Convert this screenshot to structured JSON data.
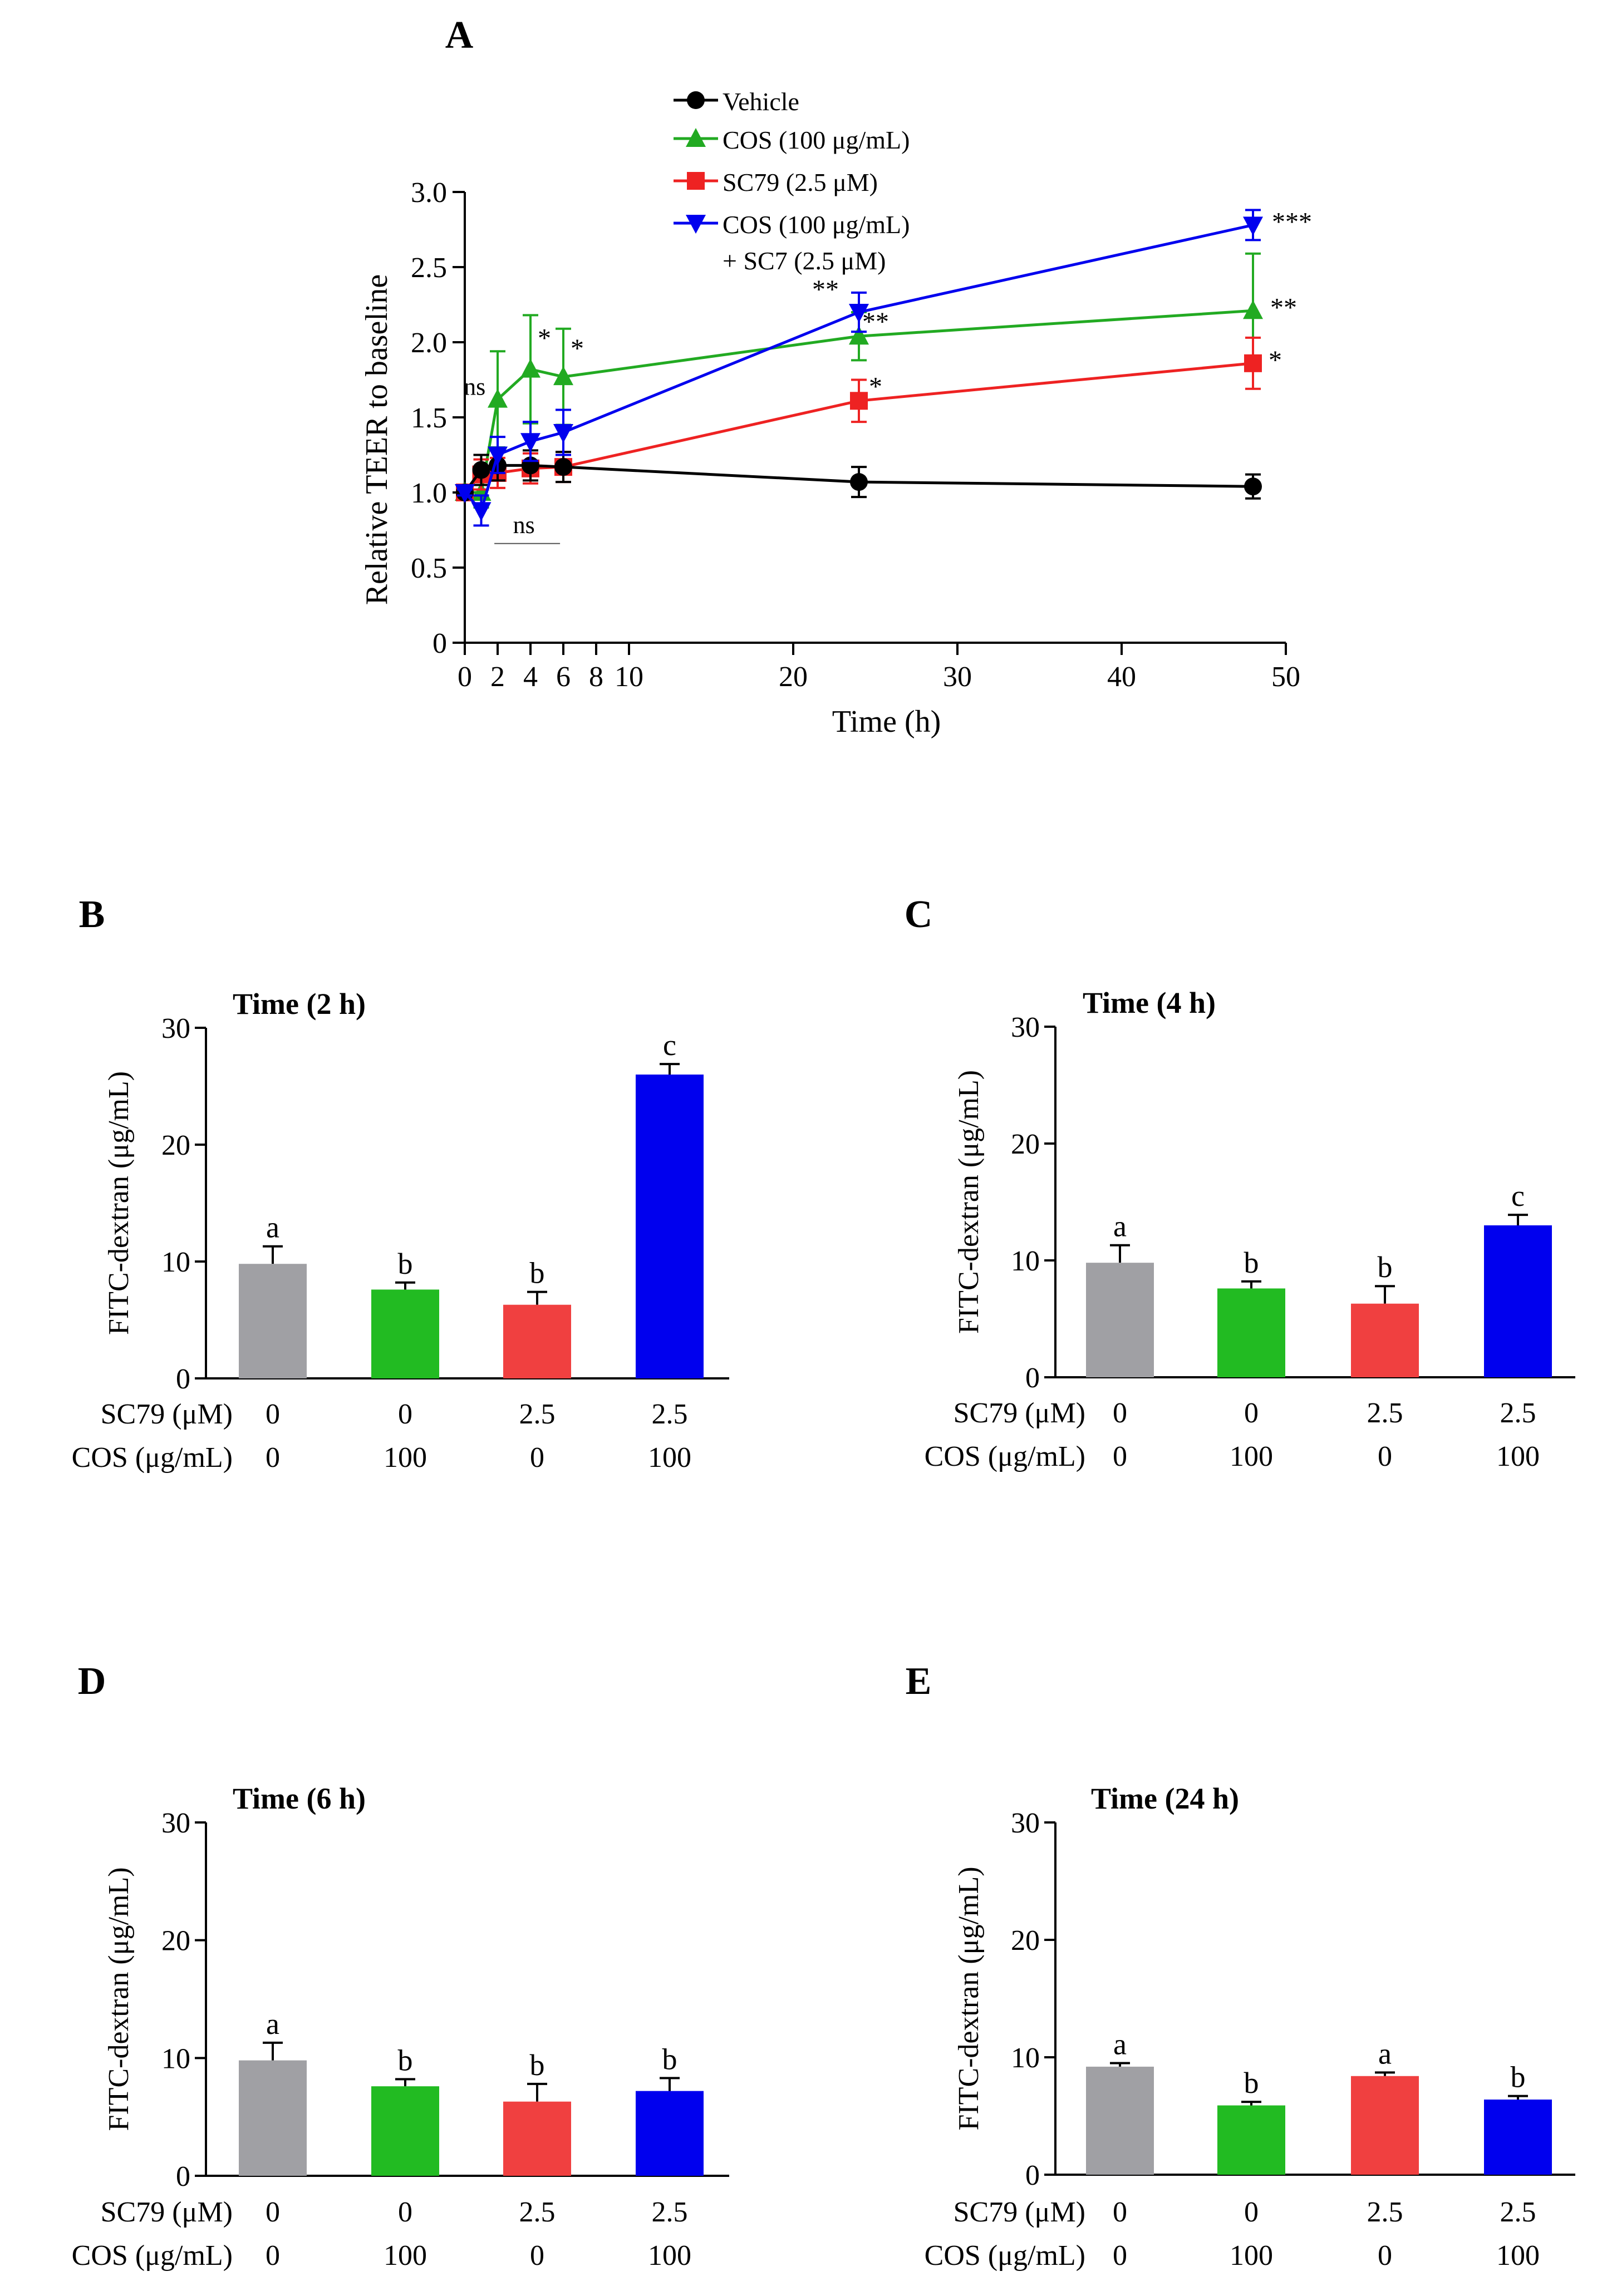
{
  "panels": {
    "A": {
      "letter": "A"
    },
    "B": {
      "letter": "B"
    },
    "C": {
      "letter": "C"
    },
    "D": {
      "letter": "D"
    },
    "E": {
      "letter": "E"
    }
  },
  "chart_data": [
    {
      "id": "A",
      "type": "line",
      "title": "",
      "xlabel": "Time (h)",
      "ylabel": "Relative TEER to baseline",
      "xlim": [
        0,
        50
      ],
      "ylim": [
        0,
        3.0
      ],
      "xticks": [
        0,
        2,
        4,
        6,
        8,
        10,
        20,
        30,
        40,
        50
      ],
      "yticks": [
        0,
        0.5,
        1.0,
        1.5,
        2.0,
        2.5,
        3.0
      ],
      "ytick_labels": [
        "0",
        "0.5",
        "1.0",
        "1.5",
        "2.0",
        "2.5",
        "3.0"
      ],
      "series": [
        {
          "name": "Vehicle",
          "color": "#000000",
          "marker": "circle",
          "x": [
            0,
            1,
            2,
            4,
            6,
            24,
            48
          ],
          "y": [
            1.0,
            1.15,
            1.18,
            1.18,
            1.17,
            1.07,
            1.04
          ],
          "err": [
            0.02,
            0.1,
            0.1,
            0.1,
            0.1,
            0.1,
            0.08
          ],
          "sig": [
            "",
            "",
            "",
            "",
            "",
            "",
            ""
          ]
        },
        {
          "name": "COS (100 μg/mL)",
          "color": "#22aa22",
          "marker": "triangle-up",
          "x": [
            0,
            1,
            2,
            4,
            6,
            24,
            48
          ],
          "y": [
            1.0,
            1.0,
            1.62,
            1.82,
            1.77,
            2.04,
            2.21
          ],
          "err": [
            0.02,
            0.1,
            0.32,
            0.36,
            0.32,
            0.16,
            0.38
          ],
          "sig": [
            "",
            "",
            "",
            "*",
            "*",
            "**",
            "**"
          ]
        },
        {
          "name": "SC79 (2.5 μM)",
          "color": "#ee2222",
          "marker": "square",
          "x": [
            0,
            1,
            2,
            4,
            6,
            24,
            48
          ],
          "y": [
            1.0,
            1.12,
            1.13,
            1.16,
            1.17,
            1.61,
            1.86
          ],
          "err": [
            0.02,
            0.1,
            0.1,
            0.1,
            0.1,
            0.14,
            0.17
          ],
          "sig": [
            "",
            "",
            "",
            "",
            "",
            "*",
            "*"
          ]
        },
        {
          "name": "COS (100 μg/mL)",
          "name2": "+ SC7 (2.5 μM)",
          "color": "#0000ee",
          "marker": "triangle-down",
          "x": [
            0,
            1,
            2,
            4,
            6,
            24,
            48
          ],
          "y": [
            1.0,
            0.88,
            1.25,
            1.34,
            1.4,
            2.2,
            2.78
          ],
          "err": [
            0.02,
            0.1,
            0.12,
            0.13,
            0.15,
            0.13,
            0.1
          ],
          "sig": [
            "",
            "",
            "",
            "",
            "",
            "**",
            "***"
          ]
        }
      ],
      "annotations": [
        "ns",
        "ns"
      ]
    },
    {
      "id": "B",
      "type": "bar",
      "title": "Time (2 h)",
      "ylabel": "FITC-dextran (μg/mL)",
      "ylim": [
        0,
        30
      ],
      "yticks": [
        0,
        10,
        20,
        30
      ],
      "row_labels": [
        "SC79 (μM)",
        "COS (μg/mL)"
      ],
      "sc79": [
        "0",
        "0",
        "2.5",
        "2.5"
      ],
      "cos": [
        "0",
        "100",
        "0",
        "100"
      ],
      "values": [
        9.8,
        7.6,
        6.3,
        26.0
      ],
      "err": [
        1.5,
        0.6,
        1.1,
        0.9
      ],
      "letters": [
        "a",
        "b",
        "b",
        "c"
      ],
      "colors": [
        "#a0a0a4",
        "#22bb22",
        "#f04040",
        "#0000ee"
      ]
    },
    {
      "id": "C",
      "type": "bar",
      "title": "Time (4 h)",
      "ylabel": "FITC-dextran (μg/mL)",
      "ylim": [
        0,
        30
      ],
      "yticks": [
        0,
        10,
        20,
        30
      ],
      "row_labels": [
        "SC79 (μM)",
        "COS (μg/mL)"
      ],
      "sc79": [
        "0",
        "0",
        "2.5",
        "2.5"
      ],
      "cos": [
        "0",
        "100",
        "0",
        "100"
      ],
      "values": [
        9.8,
        7.6,
        6.3,
        13.0
      ],
      "err": [
        1.5,
        0.6,
        1.5,
        0.9
      ],
      "letters": [
        "a",
        "b",
        "b",
        "c"
      ],
      "colors": [
        "#a0a0a4",
        "#22bb22",
        "#f04040",
        "#0000ee"
      ]
    },
    {
      "id": "D",
      "type": "bar",
      "title": "Time (6 h)",
      "ylabel": "FITC-dextran (μg/mL)",
      "ylim": [
        0,
        30
      ],
      "yticks": [
        0,
        10,
        20,
        30
      ],
      "row_labels": [
        "SC79 (μM)",
        "COS (μg/mL)"
      ],
      "sc79": [
        "0",
        "0",
        "2.5",
        "2.5"
      ],
      "cos": [
        "0",
        "100",
        "0",
        "100"
      ],
      "values": [
        9.8,
        7.6,
        6.3,
        7.2
      ],
      "err": [
        1.5,
        0.6,
        1.5,
        1.1
      ],
      "letters": [
        "a",
        "b",
        "b",
        "b"
      ],
      "colors": [
        "#a0a0a4",
        "#22bb22",
        "#f04040",
        "#0000ee"
      ]
    },
    {
      "id": "E",
      "type": "bar",
      "title": "Time (24 h)",
      "ylabel": "FITC-dextran (μg/mL)",
      "ylim": [
        0,
        30
      ],
      "yticks": [
        0,
        10,
        20,
        30
      ],
      "row_labels": [
        "SC79 (μM)",
        "COS (μg/mL)"
      ],
      "sc79": [
        "0",
        "0",
        "2.5",
        "2.5"
      ],
      "cos": [
        "0",
        "100",
        "0",
        "100"
      ],
      "values": [
        9.2,
        5.9,
        8.4,
        6.4
      ],
      "err": [
        0.3,
        0.3,
        0.3,
        0.3
      ],
      "letters": [
        "a",
        "b",
        "a",
        "b"
      ],
      "colors": [
        "#a0a0a4",
        "#22bb22",
        "#f04040",
        "#0000ee"
      ]
    }
  ]
}
